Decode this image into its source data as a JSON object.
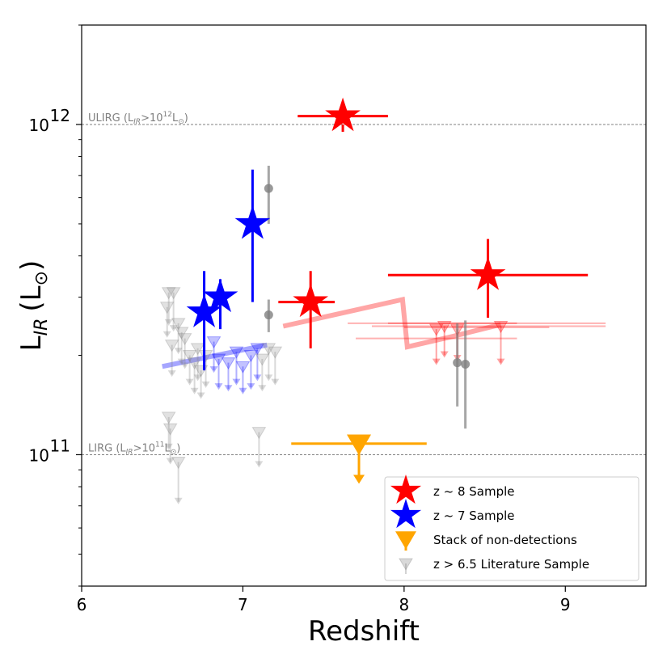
{
  "chart_data": {
    "type": "scatter",
    "xlabel": "Redshift",
    "ylabel_main": "L",
    "ylabel_sub": "IR",
    "ylabel_unit": "(L",
    "ylabel_unit_symbol": "⊙",
    "ylabel_unit_close": ")",
    "xlim": [
      6,
      9.5
    ],
    "ylog": true,
    "ylim": [
      40000000000,
      2000000000000
    ],
    "x_ticks": [
      6,
      7,
      8,
      9
    ],
    "x_tick_labels": [
      "6",
      "7",
      "8",
      "9"
    ],
    "y_ticks": [
      100000000000,
      1000000000000
    ],
    "y_tick_base": "10",
    "y_tick_exponents": [
      "11",
      "12"
    ],
    "reference_lines": [
      {
        "y": 1000000000000,
        "label": "ULIRG (L",
        "sub": "IR",
        "mid": ">10",
        "sup": "12",
        "tail": "L",
        "tail_sub": "⊙",
        "close": ")"
      },
      {
        "y": 100000000000,
        "label": "LIRG (L",
        "sub": "IR",
        "mid": ">10",
        "sup": "11",
        "tail": "L",
        "tail_sub": "⊙",
        "close": ")"
      }
    ],
    "colors": {
      "z8": "#ff0000",
      "z7": "#0000ff",
      "stack": "#ffa500",
      "literature": "#808080"
    },
    "series": [
      {
        "name": "z ~ 8 Sample",
        "marker": "star",
        "points": [
          {
            "x": 7.62,
            "y": 1060000000000,
            "xerr": [
              0.28,
              0.28
            ],
            "yerr": [
              950000000000,
              1000000000000
            ]
          },
          {
            "x": 7.42,
            "y": 290000000000,
            "xerr": [
              0.2,
              0.15
            ],
            "yerr": [
              210000000000,
              360000000000
            ]
          },
          {
            "x": 8.52,
            "y": 350000000000,
            "xerr": [
              0.62,
              0.62
            ],
            "yerr": [
              260000000000,
              450000000000
            ]
          }
        ]
      },
      {
        "name": "z ~ 7 Sample",
        "marker": "star",
        "points": [
          {
            "x": 7.06,
            "y": 500000000000,
            "xerr": [
              0,
              0
            ],
            "yerr": [
              290000000000,
              730000000000
            ]
          },
          {
            "x": 6.86,
            "y": 300000000000,
            "xerr": [
              0,
              0
            ],
            "yerr": [
              240000000000,
              340000000000
            ]
          },
          {
            "x": 6.76,
            "y": 270000000000,
            "xerr": [
              0,
              0
            ],
            "yerr": [
              180000000000,
              360000000000
            ]
          }
        ]
      },
      {
        "name": "Stack of non-detections",
        "marker": "triangle-down-upper-limit",
        "points": [
          {
            "x": 7.72,
            "y": 108000000000,
            "xerr": [
              0.42,
              0.42
            ],
            "ylimit_to": 84000000000
          }
        ]
      },
      {
        "name": "z > 6.5 Literature Sample",
        "marker": "triangle-down-upper-limit",
        "upper_limits": [
          {
            "x": 6.54,
            "y": 310000000000,
            "to": 250000000000
          },
          {
            "x": 6.57,
            "y": 310000000000,
            "to": 240000000000
          },
          {
            "x": 6.53,
            "y": 280000000000,
            "to": 230000000000
          },
          {
            "x": 6.6,
            "y": 250000000000,
            "to": 205000000000
          },
          {
            "x": 6.62,
            "y": 235000000000,
            "to": 190000000000
          },
          {
            "x": 6.64,
            "y": 225000000000,
            "to": 185000000000
          },
          {
            "x": 6.56,
            "y": 215000000000,
            "to": 175000000000
          },
          {
            "x": 6.67,
            "y": 200000000000,
            "to": 165000000000
          },
          {
            "x": 6.7,
            "y": 190000000000,
            "to": 155000000000
          },
          {
            "x": 6.72,
            "y": 210000000000,
            "to": 170000000000
          },
          {
            "x": 6.74,
            "y": 180000000000,
            "to": 150000000000
          },
          {
            "x": 6.77,
            "y": 200000000000,
            "to": 162000000000
          },
          {
            "x": 6.82,
            "y": 220000000000,
            "to": 180000000000
          },
          {
            "x": 6.85,
            "y": 195000000000,
            "to": 160000000000
          },
          {
            "x": 6.91,
            "y": 190000000000,
            "to": 158000000000
          },
          {
            "x": 6.96,
            "y": 205000000000,
            "to": 165000000000
          },
          {
            "x": 7.0,
            "y": 185000000000,
            "to": 155000000000
          },
          {
            "x": 7.05,
            "y": 200000000000,
            "to": 160000000000
          },
          {
            "x": 7.09,
            "y": 210000000000,
            "to": 170000000000
          },
          {
            "x": 7.12,
            "y": 195000000000,
            "to": 158000000000
          },
          {
            "x": 7.16,
            "y": 210000000000,
            "to": 170000000000
          },
          {
            "x": 7.2,
            "y": 205000000000,
            "to": 165000000000
          },
          {
            "x": 6.54,
            "y": 130000000000,
            "to": 105000000000
          },
          {
            "x": 6.55,
            "y": 120000000000,
            "to": 95000000000
          },
          {
            "x": 6.6,
            "y": 95000000000,
            "to": 72000000000
          },
          {
            "x": 7.1,
            "y": 117000000000,
            "to": 93000000000
          },
          {
            "x": 8.2,
            "y": 240000000000,
            "to": 190000000000
          },
          {
            "x": 8.25,
            "y": 245000000000,
            "to": 200000000000
          },
          {
            "x": 8.33,
            "y": 240000000000,
            "to": 195000000000
          },
          {
            "x": 8.6,
            "y": 245000000000,
            "to": 190000000000
          }
        ],
        "detections": [
          {
            "x": 7.16,
            "y": 640000000000,
            "yerr": [
              500000000000,
              750000000000
            ]
          },
          {
            "x": 7.16,
            "y": 265000000000,
            "yerr": [
              235000000000,
              295000000000
            ]
          },
          {
            "x": 8.33,
            "y": 190000000000,
            "yerr": [
              140000000000,
              250000000000
            ]
          },
          {
            "x": 8.38,
            "y": 188000000000,
            "yerr": [
              120000000000,
              255000000000
            ]
          }
        ],
        "horizontal_bars": [
          {
            "x0": 7.65,
            "x1": 8.7,
            "y": 250000000000
          },
          {
            "x0": 7.8,
            "x1": 9.25,
            "y": 245000000000
          },
          {
            "x0": 7.9,
            "x1": 9.25,
            "y": 250000000000
          },
          {
            "x0": 7.7,
            "x1": 8.7,
            "y": 225000000000
          },
          {
            "x0": 8.0,
            "x1": 8.9,
            "y": 243000000000
          }
        ]
      }
    ],
    "model_curves": [
      {
        "name": "z7-track",
        "color": "#0000ff",
        "points": [
          [
            6.5,
            185000000000
          ],
          [
            7.15,
            215000000000
          ]
        ]
      },
      {
        "name": "z8-track",
        "color": "#ff0000",
        "points": [
          [
            7.25,
            245000000000
          ],
          [
            7.99,
            295000000000
          ],
          [
            8.02,
            212000000000
          ],
          [
            8.3,
            228000000000
          ],
          [
            8.6,
            248000000000
          ]
        ]
      }
    ],
    "legend": {
      "position": "lower-right",
      "entries": [
        {
          "label": "z ~ 8 Sample",
          "series": 0
        },
        {
          "label": "z ~ 7 Sample",
          "series": 1
        },
        {
          "label": "Stack of non-detections",
          "series": 2
        },
        {
          "label": "z > 6.5 Literature Sample",
          "series": 3
        }
      ]
    }
  }
}
